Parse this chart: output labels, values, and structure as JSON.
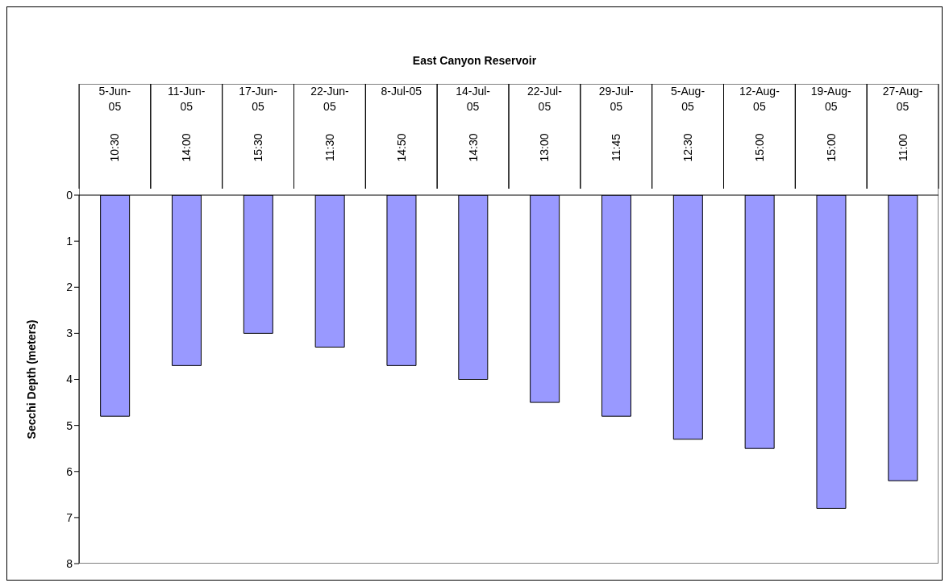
{
  "chart_data": {
    "type": "bar",
    "title": "East Canyon Reservoir",
    "ylabel": "Secchi Depth (meters)",
    "categories": [
      "5-Jun-05 10:30",
      "11-Jun-05 14:00",
      "17-Jun-05 15:30",
      "22-Jun-05 11:30",
      "8-Jul-05 14:50",
      "14-Jul-05 14:30",
      "22-Jul-05 13:00",
      "29-Jul-05 11:45",
      "5-Aug-05 12:30",
      "12-Aug-05 15:00",
      "19-Aug-05 15:00",
      "27-Aug-05 11:00"
    ],
    "values": [
      4.8,
      3.7,
      3.0,
      3.3,
      3.7,
      4.0,
      4.5,
      4.8,
      5.3,
      5.5,
      6.8,
      6.2
    ],
    "color": "#9999ff",
    "ylim": [
      8,
      0
    ],
    "yticks": [
      0,
      1,
      2,
      3,
      4,
      5,
      6,
      7,
      8
    ],
    "grid": false,
    "legend": false
  }
}
